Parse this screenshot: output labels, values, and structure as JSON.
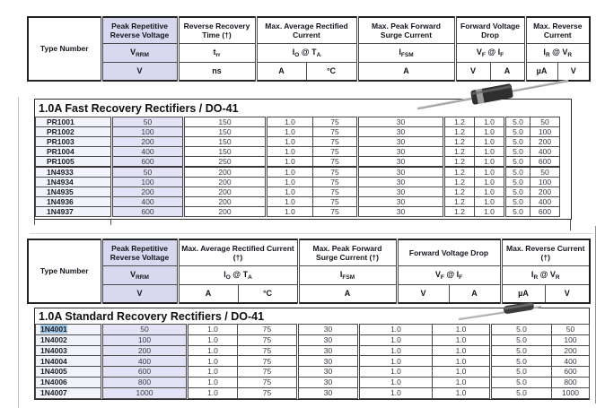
{
  "colors": {
    "lavender_header": "#d8d9ef",
    "lavender_data": "#e3e3f5",
    "type_column_tint": "#f3f3fb",
    "selection_highlight": "#a5c9e9",
    "table_border": "#2b2b2b"
  },
  "symbols": {
    "vrrm": {
      "p1": "V",
      "s1": "RRM"
    },
    "trr": {
      "p1": "t",
      "s1": "rr"
    },
    "io_ta": {
      "p1": "I",
      "s1": "O",
      "p2": " @ T",
      "s2": "A"
    },
    "ifsm": {
      "p1": "I",
      "s1": "FSM"
    },
    "vf_if": {
      "p1": "V",
      "s1": "F",
      "p2": " @ I",
      "s2": "F"
    },
    "ir_vr": {
      "p1": "I",
      "s1": "R",
      "p2": " @ V",
      "s2": "R"
    }
  },
  "header1": {
    "type": "Type Number",
    "vrrm": "Peak Repetitive Reverse Voltage",
    "trr": "Reverse Recovery Time (†)",
    "io": "Max. Average Rectified Current",
    "ifsm": "Max. Peak Forward Surge Current",
    "vf": "Forward Voltage Drop",
    "ir": "Max. Reverse Current",
    "units": [
      "V",
      "ns",
      "A",
      "°C",
      "A",
      "V",
      "A",
      "µA",
      "V"
    ]
  },
  "header2": {
    "type": "Type Number",
    "vrrm": "Peak Repetitive Reverse Voltage",
    "io": "Max. Average Rectified Current (†)",
    "ifsm": "Max. Peak Forward Surge Current (†)",
    "vf": "Forward Voltage Drop",
    "ir": "Max. Reverse Current (†)",
    "units": [
      "V",
      "A",
      "°C",
      "A",
      "V",
      "A",
      "µA",
      "V"
    ]
  },
  "fast_table": {
    "title": "1.0A Fast Recovery Rectifiers / DO-41",
    "groups": [
      {
        "rows": [
          [
            "PR1001",
            "50",
            "150",
            "1.0",
            "75",
            "30",
            "1.2",
            "1.0",
            "5.0",
            "50"
          ],
          [
            "PR1002",
            "100",
            "150",
            "1.0",
            "75",
            "30",
            "1.2",
            "1.0",
            "5.0",
            "100"
          ],
          [
            "PR1003",
            "200",
            "150",
            "1.0",
            "75",
            "30",
            "1.2",
            "1.0",
            "5.0",
            "200"
          ],
          [
            "PR1004",
            "400",
            "150",
            "1.0",
            "75",
            "30",
            "1.2",
            "1.0",
            "5.0",
            "400"
          ],
          [
            "PR1005",
            "600",
            "250",
            "1.0",
            "75",
            "30",
            "1.2",
            "1.0",
            "5.0",
            "600"
          ]
        ]
      },
      {
        "rows": [
          [
            "1N4933",
            "50",
            "200",
            "1.0",
            "75",
            "30",
            "1.2",
            "1.0",
            "5.0",
            "50"
          ],
          [
            "1N4934",
            "100",
            "200",
            "1.0",
            "75",
            "30",
            "1.2",
            "1.0",
            "5.0",
            "100"
          ],
          [
            "1N4935",
            "200",
            "200",
            "1.0",
            "75",
            "30",
            "1.2",
            "1.0",
            "5.0",
            "200"
          ],
          [
            "1N4936",
            "400",
            "200",
            "1.0",
            "75",
            "30",
            "1.2",
            "1.0",
            "5.0",
            "400"
          ],
          [
            "1N4937",
            "600",
            "200",
            "1.0",
            "75",
            "30",
            "1.2",
            "1.0",
            "5.0",
            "600"
          ]
        ]
      }
    ]
  },
  "standard_table": {
    "title": "1.0A Standard Recovery Rectifiers / DO-41",
    "highlighted_type": "1N4001",
    "rows": [
      [
        "1N4001",
        "50",
        "1.0",
        "75",
        "30",
        "1.0",
        "1.0",
        "5.0",
        "50"
      ],
      [
        "1N4002",
        "100",
        "1.0",
        "75",
        "30",
        "1.0",
        "1.0",
        "5.0",
        "100"
      ],
      [
        "1N4003",
        "200",
        "1.0",
        "75",
        "30",
        "1.0",
        "1.0",
        "5.0",
        "200"
      ],
      [
        "1N4004",
        "400",
        "1.0",
        "75",
        "30",
        "1.0",
        "1.0",
        "5.0",
        "400"
      ],
      [
        "1N4005",
        "600",
        "1.0",
        "75",
        "30",
        "1.0",
        "1.0",
        "5.0",
        "600"
      ],
      [
        "1N4006",
        "800",
        "1.0",
        "75",
        "30",
        "1.0",
        "1.0",
        "5.0",
        "800"
      ],
      [
        "1N4007",
        "1000",
        "1.0",
        "75",
        "30",
        "1.0",
        "1.0",
        "5.0",
        "1000"
      ]
    ]
  },
  "icons": {
    "diode_top": "do41-axial-diode-illustration",
    "diode_bottom": "do41-axial-diode-illustration"
  }
}
